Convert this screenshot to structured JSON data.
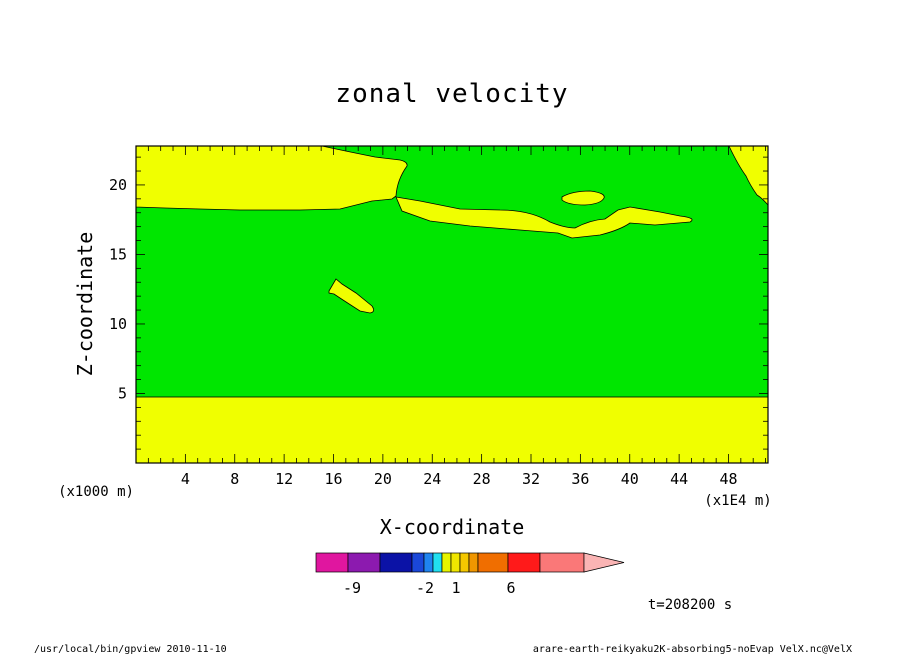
{
  "chart_data": {
    "type": "heatmap",
    "title": "zonal velocity",
    "xlabel": "X-coordinate",
    "ylabel": "Z-coordinate",
    "x_unit": "(x1E4 m)",
    "y_unit": "(x1000 m)",
    "xlim": [
      0,
      51.2
    ],
    "ylim": [
      0,
      22.8
    ],
    "x_ticks": [
      4,
      8,
      12,
      16,
      20,
      24,
      28,
      32,
      36,
      40,
      44,
      48
    ],
    "y_ticks": [
      5,
      10,
      15,
      20
    ],
    "grid": false,
    "time_label": "t=208200 s",
    "colorbar": {
      "colors": [
        "#e0169f",
        "#8c1aaf",
        "#0b12a6",
        "#1a47d8",
        "#1f84f0",
        "#21dff0",
        "#e6f500",
        "#f0e600",
        "#f5c800",
        "#f09600",
        "#f06e00",
        "#ff1a1a",
        "#fa7878",
        "#fab4b4"
      ],
      "tick_labels": [
        "-9",
        "-2",
        "1",
        "6"
      ],
      "field_colors": {
        "low": "#00e600",
        "high": "#f0ff00"
      }
    },
    "regions": [
      {
        "level": "high",
        "shape": "bottom-layer",
        "z_top": 4.9
      },
      {
        "level": "high",
        "shape": "upper-left",
        "x_end": 21.2
      },
      {
        "level": "high",
        "shape": "upper-right-corner",
        "x_start": 46
      },
      {
        "level": "high",
        "shape": "band",
        "x_range": [
          21,
          45.5
        ],
        "z_range": [
          16.3,
          19.3
        ]
      },
      {
        "level": "high",
        "shape": "blob",
        "x_range": [
          34.5,
          38
        ],
        "z_range": [
          18.9,
          19.6
        ]
      },
      {
        "level": "high",
        "shape": "streak",
        "x_range": [
          15.7,
          19.4
        ],
        "z_range": [
          11,
          13.2
        ]
      }
    ]
  },
  "footer": {
    "left": "/usr/local/bin/gpview  2010-11-10",
    "right": "arare-earth-reikyaku2K-absorbing5-noEvap_VelX.nc@VelX"
  }
}
